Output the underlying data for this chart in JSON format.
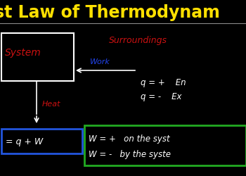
{
  "bg_color": "#000000",
  "title_text": "st Law of Thermodynam",
  "title_color": "#FFE000",
  "title_fontsize": 17,
  "system_label": "System",
  "system_color": "#CC1111",
  "surroundings_label": "Surroundings",
  "surroundings_color": "#CC1111",
  "work_label": "Work",
  "work_color": "#2244EE",
  "heat_label": "Heat",
  "heat_color": "#CC1111",
  "equation_label": "= q + W",
  "equation_color": "#FFFFFF",
  "q_plus_label": "q = +    En",
  "q_minus_label": "q = -    Ex",
  "q_color": "#FFFFFF",
  "w_plus_label": "W = +   on the syst",
  "w_minus_label": "W = -   by the syste",
  "w_color": "#FFFFFF",
  "system_box_color": "#FFFFFF",
  "equation_box_color": "#2255DD",
  "w_box_color": "#22AA22",
  "separator_color": "#888888"
}
